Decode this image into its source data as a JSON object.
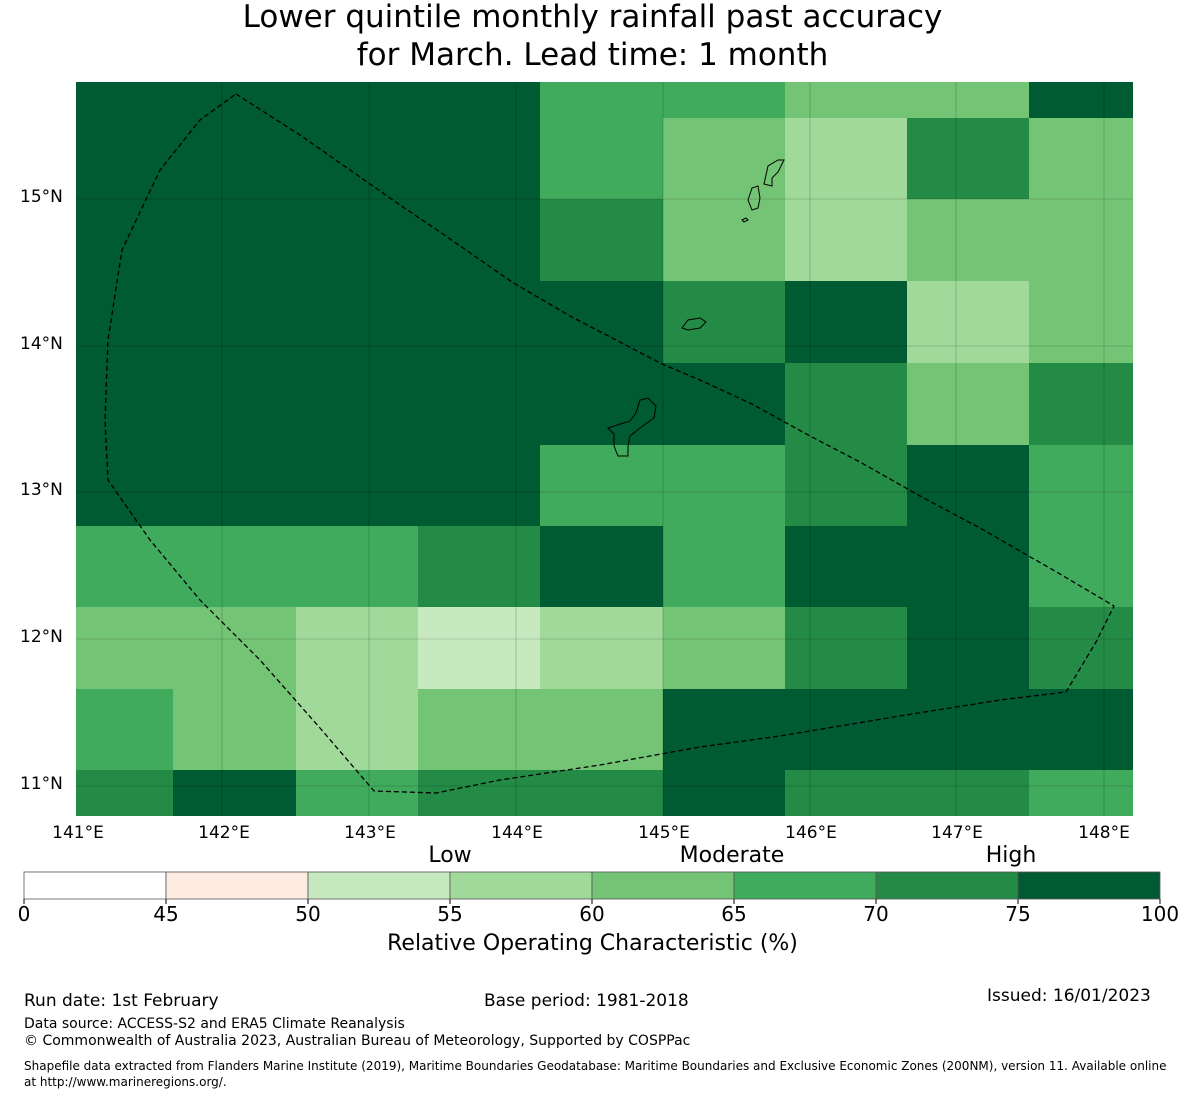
{
  "title": {
    "line1": "Lower quintile monthly rainfall past accuracy",
    "line2": "for March. Lead time: 1 month"
  },
  "map": {
    "lat_labels": [
      "15°N",
      "14°N",
      "13°N",
      "12°N",
      "11°N"
    ],
    "lon_labels": [
      "141°E",
      "142°E",
      "143°E",
      "144°E",
      "145°E",
      "146°E",
      "147°E",
      "148°E"
    ],
    "grid_values": [
      [
        100,
        100,
        75,
        75,
        65,
        65,
        60,
        60,
        75
      ],
      [
        100,
        100,
        75,
        100,
        65,
        62,
        55,
        70,
        62
      ],
      [
        100,
        100,
        100,
        100,
        72,
        60,
        55,
        60,
        60
      ],
      [
        100,
        100,
        100,
        100,
        100,
        72,
        100,
        55,
        62
      ],
      [
        100,
        100,
        100,
        100,
        100,
        100,
        72,
        62,
        72
      ],
      [
        100,
        100,
        100,
        100,
        68,
        68,
        72,
        100,
        68
      ],
      [
        68,
        68,
        68,
        72,
        100,
        68,
        100,
        100,
        68
      ],
      [
        62,
        62,
        58,
        52,
        58,
        62,
        72,
        100,
        72
      ],
      [
        68,
        62,
        58,
        62,
        62,
        100,
        100,
        100,
        100
      ],
      [
        72,
        100,
        68,
        72,
        72,
        100,
        72,
        72,
        68
      ]
    ]
  },
  "colorbar": {
    "level_labels": [
      "Low",
      "Moderate",
      "High"
    ],
    "ticks": [
      "0",
      "45",
      "50",
      "55",
      "60",
      "65",
      "70",
      "75",
      "100"
    ],
    "colors": [
      "#ffffff",
      "#feebe2",
      "#c7e9c0",
      "#a1d99b",
      "#74c476",
      "#41ab5d",
      "#238b45",
      "#005a32"
    ],
    "label": "Relative Operating Characteristic (%)"
  },
  "footer": {
    "run_date": "Run date: 1st February",
    "base_period": "Base period: 1981-2018",
    "issued": "Issued: 16/01/2023",
    "data_source": "Data source: ACCESS-S2 and ERA5 Climate Reanalysis",
    "copyright": "© Commonwealth of Australia 2023, Australian Bureau of Meteorology, Supported by COSPPac",
    "shapefile": "Shapefile data extracted from Flanders Marine Institute (2019), Maritime Boundaries Geodatabase: Maritime Boundaries and Exclusive Economic Zones (200NM), version 11. Available online at http://www.marineregions.org/."
  }
}
